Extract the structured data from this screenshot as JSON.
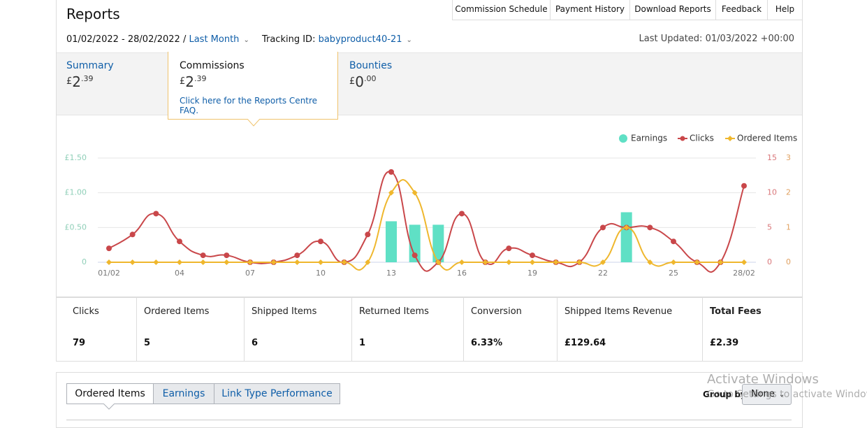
{
  "header": {
    "title": "Reports",
    "date_range": "01/02/2022 - 28/02/2022 /",
    "period": "Last Month",
    "tracking_label": "Tracking ID:",
    "tracking_id": "babyproduct40-21",
    "last_updated": "Last Updated: 01/03/2022 +00:00"
  },
  "nav": [
    "Commission Schedule",
    "Payment History",
    "Download Reports",
    "Feedback",
    "Help"
  ],
  "tabs": {
    "summary": {
      "label": "Summary",
      "currency": "£",
      "whole": "2",
      "fraction": ".39"
    },
    "commissions": {
      "label": "Commissions",
      "currency": "£",
      "whole": "2",
      "fraction": ".39",
      "link": "Click here for the Reports Centre FAQ."
    },
    "bounties": {
      "label": "Bounties",
      "currency": "£",
      "whole": "0",
      "fraction": ".00"
    }
  },
  "chart_data": {
    "type": "combo",
    "categories": [
      "01/02",
      null,
      null,
      "04",
      null,
      null,
      "07",
      null,
      null,
      "10",
      null,
      null,
      "13",
      null,
      null,
      "16",
      null,
      null,
      "19",
      null,
      null,
      "22",
      null,
      null,
      "25",
      null,
      null,
      "28/02"
    ],
    "series": [
      {
        "name": "Earnings",
        "type": "bar",
        "axis": "y",
        "color": "#5fe0c5",
        "values": [
          0,
          0,
          0,
          0,
          0,
          0,
          0,
          0,
          0,
          0,
          0,
          0,
          0.59,
          0.54,
          0.54,
          0,
          0,
          0,
          0,
          0,
          0,
          0,
          0.72,
          0,
          0,
          0,
          0,
          0
        ]
      },
      {
        "name": "Clicks",
        "type": "line",
        "axis": "y2",
        "color": "#c9474a",
        "values": [
          2,
          4,
          7,
          3,
          1,
          1,
          0,
          0,
          1,
          3,
          0,
          4,
          13,
          1,
          0,
          7,
          0,
          2,
          1,
          0,
          0,
          5,
          5,
          5,
          3,
          0,
          0,
          11
        ]
      },
      {
        "name": "Ordered Items",
        "type": "line",
        "axis": "y3",
        "color": "#efb72d",
        "values": [
          0,
          0,
          0,
          0,
          0,
          0,
          0,
          0,
          0,
          0,
          0,
          0,
          2,
          2,
          0,
          0,
          0,
          0,
          0,
          0,
          0,
          0,
          1,
          0,
          0,
          0,
          0,
          0
        ]
      }
    ],
    "ylim": [
      0,
      1.5
    ],
    "yticks": [
      0,
      {
        "value": 0.5,
        "label": "£0.50"
      },
      {
        "value": 1,
        "label": "£1.00"
      },
      {
        "value": 1.5,
        "label": "£1.50"
      }
    ],
    "y2lim": [
      0,
      15
    ],
    "y2ticks": [
      0,
      5,
      10,
      15
    ],
    "y3lim": [
      0,
      3
    ],
    "y3ticks": [
      0,
      1,
      2,
      3
    ],
    "grid": true,
    "legend": "top-right"
  },
  "stats": [
    {
      "label": "Clicks",
      "value": "79"
    },
    {
      "label": "Ordered Items",
      "value": "5"
    },
    {
      "label": "Shipped Items",
      "value": "6"
    },
    {
      "label": "Returned Items",
      "value": "1"
    },
    {
      "label": "Conversion",
      "value": "6.33%"
    },
    {
      "label": "Shipped Items Revenue",
      "value": "£129.64"
    },
    {
      "label": "Total Fees",
      "value": "£2.39"
    }
  ],
  "bottom": {
    "tabs": [
      "Ordered Items",
      "Earnings",
      "Link Type Performance"
    ],
    "group_by": "Group by",
    "select": "None"
  },
  "watermark": {
    "title": "Activate Windows",
    "text": "Go to Settings to activate Windows."
  }
}
